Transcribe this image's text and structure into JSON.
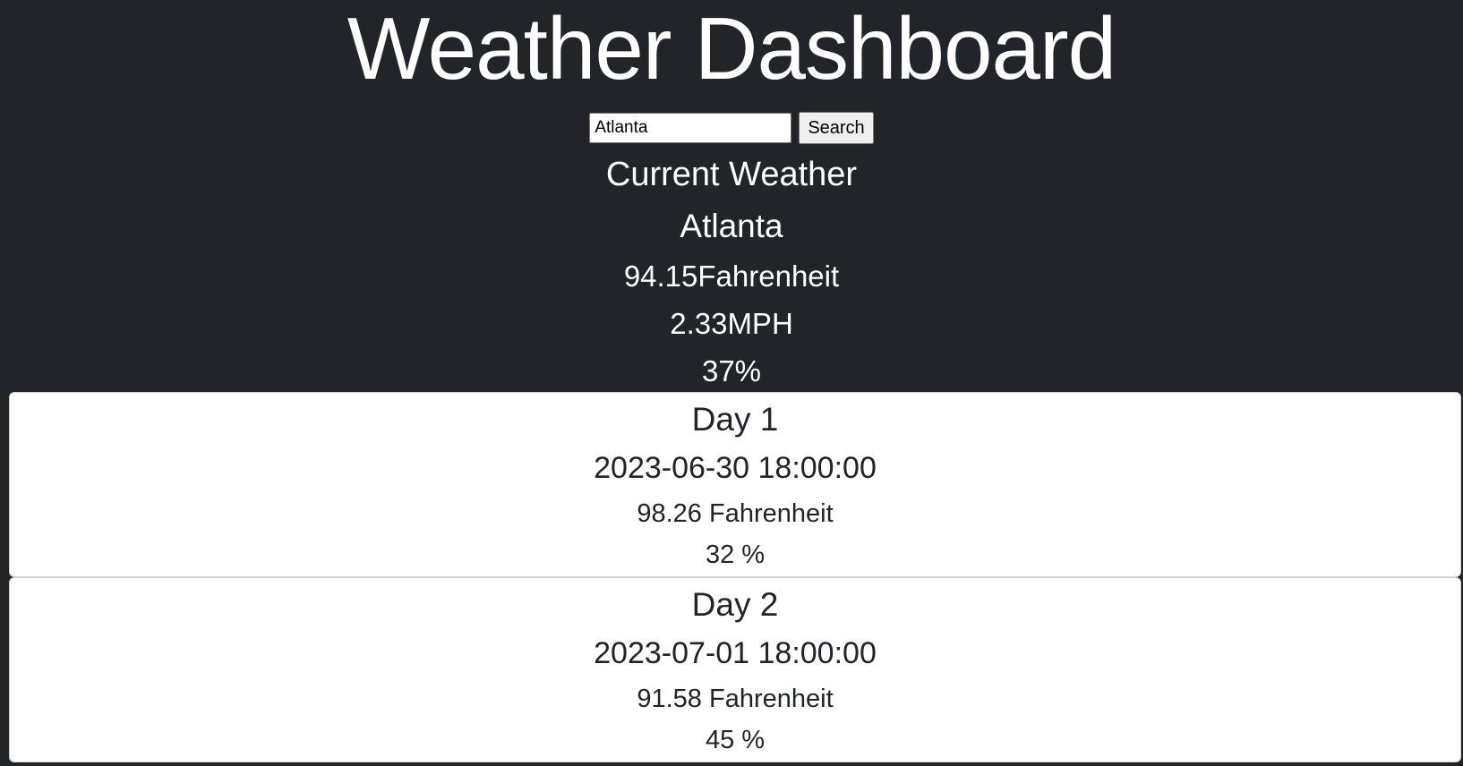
{
  "header": {
    "title": "Weather Dashboard"
  },
  "search": {
    "value": "Atlanta",
    "button_label": "Search"
  },
  "current": {
    "heading": "Current Weather",
    "city": "Atlanta",
    "temperature": "94.15Fahrenheit",
    "wind": "2.33MPH",
    "humidity": "37%"
  },
  "forecast": {
    "days": [
      {
        "label": "Day 1",
        "datetime": "2023-06-30 18:00:00",
        "temperature": "98.26 Fahrenheit",
        "humidity": "32 %"
      },
      {
        "label": "Day 2",
        "datetime": "2023-07-01 18:00:00",
        "temperature": "91.58 Fahrenheit",
        "humidity": "45 %"
      }
    ]
  }
}
